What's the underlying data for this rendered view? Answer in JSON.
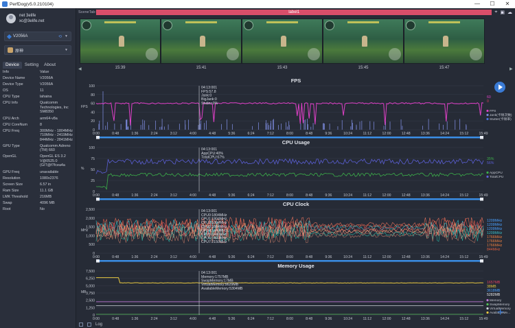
{
  "window": {
    "title": "PerfDog(v5.0.210104)",
    "controls": [
      "—",
      "☐",
      "✕"
    ]
  },
  "profile": {
    "name": "net 3elife",
    "email": "xc@3elife.net"
  },
  "device_select": {
    "value": "V2056A"
  },
  "app_select": {
    "value": "原神"
  },
  "side_tabs": [
    "Device",
    "Setting",
    "About"
  ],
  "info_header": {
    "key": "Info",
    "value": "Value"
  },
  "device_info": [
    {
      "k": "Device Name",
      "v": "V2056A"
    },
    {
      "k": "Device Type",
      "v": "V2056A"
    },
    {
      "k": "OS",
      "v": "11"
    },
    {
      "k": "CPU Type",
      "v": "lahaina"
    },
    {
      "k": "CPU Info",
      "v": "Qualcomm Technologies, Inc SM8350"
    },
    {
      "k": "CPU Arch",
      "v": "arm64-v8a"
    },
    {
      "k": "CPU CoreNum",
      "v": "8"
    },
    {
      "k": "CPU Freq",
      "v": "300MHz - 1804MHz 710MHz - 2419MHz 844MHz - 2841MHz"
    },
    {
      "k": "GPU Type",
      "v": "Qualcomm Adreno (TM) 660"
    },
    {
      "k": "OpenGL",
      "v": "OpenGL ES 3.2 V@0525.0 (GIT@f7fcea4a"
    },
    {
      "k": "GPU Freq",
      "v": "unavailable"
    },
    {
      "k": "Resolution",
      "v": "1080x2376"
    },
    {
      "k": "Screen Size",
      "v": "6.57 in"
    },
    {
      "k": "Ram Size",
      "v": "11.1 GB"
    },
    {
      "k": "LMK Threshold",
      "v": "216MB"
    },
    {
      "k": "Swap",
      "v": "4096 MB"
    },
    {
      "k": "Root",
      "v": "No"
    }
  ],
  "scene": {
    "tab_label": "SceneTab:",
    "label": "label1"
  },
  "thumb_times": [
    "15:39",
    "15:41",
    "15:43",
    "15:45",
    "15:47"
  ],
  "time_ticks": [
    "0:00",
    "0:48",
    "1:36",
    "2:24",
    "3:12",
    "4:00",
    "4:48",
    "5:36",
    "6:24",
    "7:12",
    "8:00",
    "8:48",
    "9:36",
    "10:24",
    "11:12",
    "12:00",
    "12:48",
    "13:36",
    "14:24",
    "15:12",
    "15:49"
  ],
  "charts": {
    "fps": {
      "title": "FPS",
      "ylabel": "FPS",
      "yticks": [
        "100",
        "80",
        "60",
        "40",
        "20",
        "0"
      ],
      "cursor_time": "04:13:001",
      "tooltip": [
        "FPS:57.8",
        "Jank:0",
        "BigJank:0",
        "Stutter:0%"
      ],
      "right_values": [
        "60",
        "0"
      ],
      "legend": [
        "FPS",
        "Jank(卡顿次数)",
        "Stutter(卡顿率)"
      ]
    },
    "cpu_usage": {
      "title": "CPU Usage",
      "ylabel": "%",
      "yticks": [
        "100",
        "75",
        "50",
        "25",
        "0"
      ],
      "cursor_time": "04:13:001",
      "tooltip": [
        "AppCPU:40%",
        "TotalCPU:67%"
      ],
      "right_values": [
        "35%",
        "56%"
      ],
      "legend": [
        "AppCPU",
        "TotalCPU"
      ]
    },
    "cpu_clock": {
      "title": "CPU Clock",
      "ylabel": "MHz",
      "yticks": [
        "2,500",
        "2,000",
        "1,500",
        "1,000",
        "500",
        "0"
      ],
      "cursor_time": "04:13:001",
      "tooltip": [
        "CPU0:1804MHz",
        "CPU1:1804MHz",
        "CPU2:1804MHz",
        "CPU3:1804MHz",
        "CPU4:1440MHz",
        "CPU5:1440MHz",
        "CPU6:1440MHz",
        "CPU7:2150MHz"
      ],
      "right_values": [
        "1209MHz",
        "1209MHz",
        "1209MHz",
        "1209MHz",
        "1766MHz",
        "1766MHz",
        "1766MHz",
        "844MHz"
      ]
    },
    "memory": {
      "title": "Memory Usage",
      "ylabel": "MB",
      "yticks": [
        "7,500",
        "6,250",
        "5,000",
        "3,750",
        "2,500",
        "1,250",
        "0"
      ],
      "cursor_time": "04:13:001",
      "tooltip": [
        "Memory:1757MB",
        "SwapMemory:17MB",
        "VirtualMemory:9629MB",
        "AvailableMemory:5304MB"
      ],
      "right_values": [
        "1657MB",
        "38MB",
        "3618MB",
        "5282MB"
      ],
      "legend": [
        "Memory",
        "SwapMemory",
        "VirtualMemory",
        "AvailableMe..."
      ]
    }
  },
  "bottom": {
    "log_label": "Log"
  },
  "colors": {
    "accent": "#3a7bd5",
    "fps": "#e040c8",
    "label": "#d94e6a",
    "app_cpu": "#3cb04a",
    "total_cpu": "#5b5fd6",
    "memory_line": "#e8c840"
  }
}
